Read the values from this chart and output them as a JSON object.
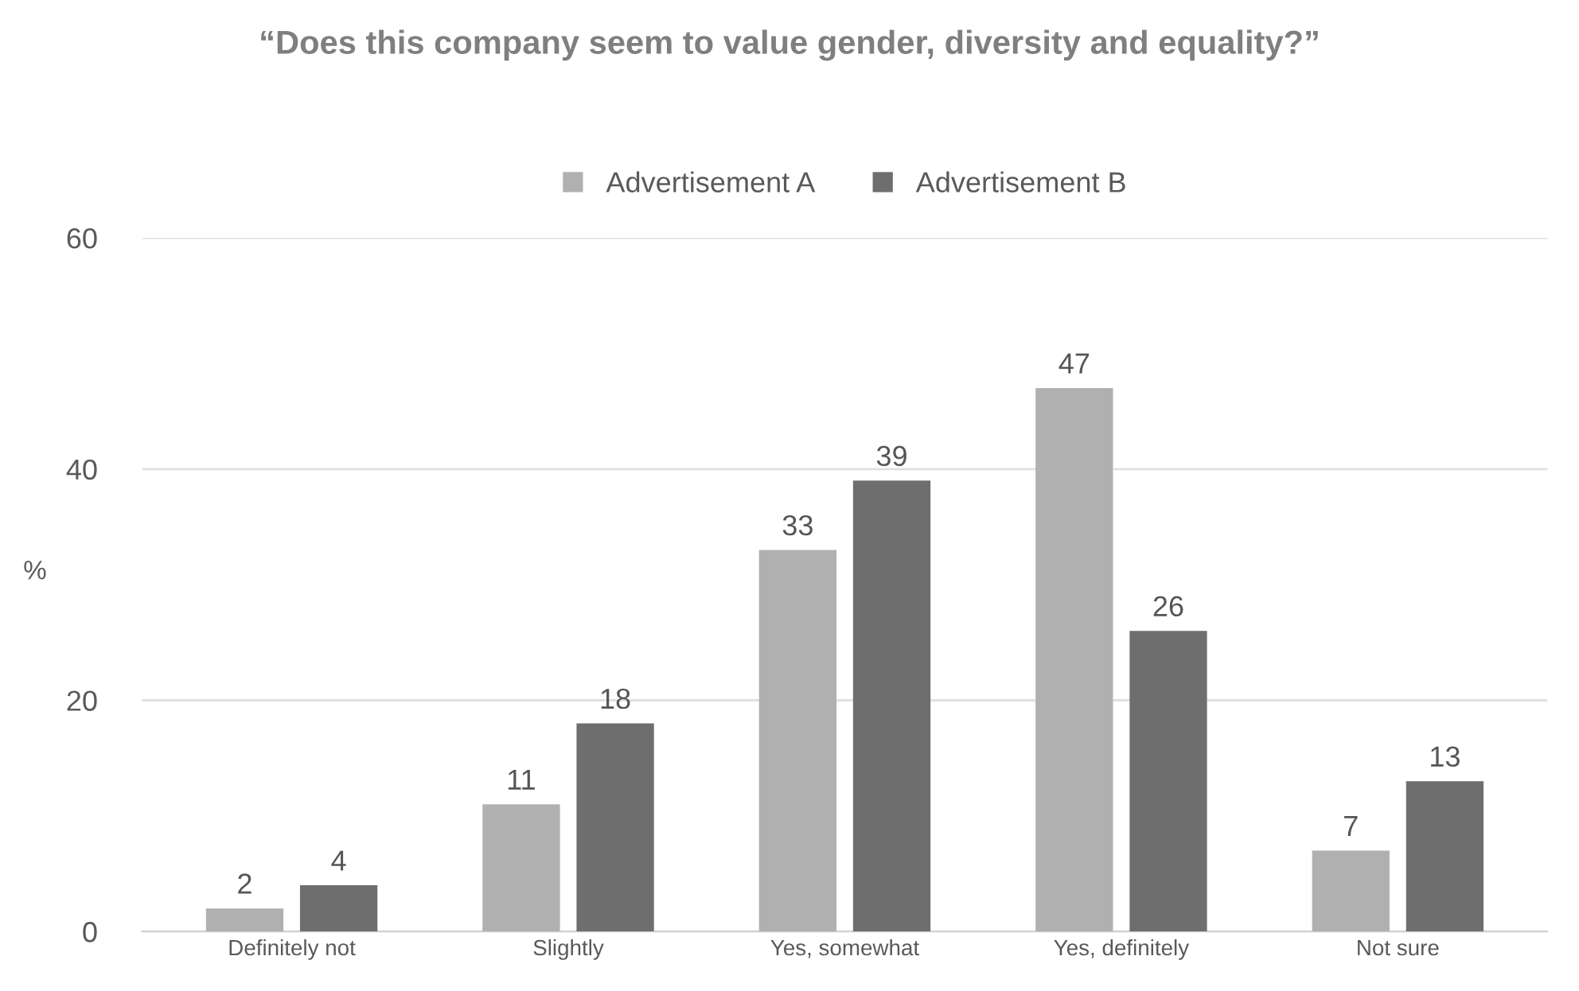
{
  "chart_data": {
    "type": "bar",
    "title": "“Does this company seem to value gender, diversity and equality?”",
    "ylabel": "%",
    "categories": [
      "Definitely not",
      "Slightly",
      "Yes, somewhat",
      "Yes, definitely",
      "Not sure"
    ],
    "series": [
      {
        "name": "Advertisement A",
        "color": "#b0b0b0",
        "values": [
          2,
          11,
          33,
          47,
          7
        ]
      },
      {
        "name": "Advertisement B",
        "color": "#6e6e6e",
        "values": [
          4,
          18,
          39,
          26,
          13
        ]
      }
    ],
    "ylim": [
      0,
      60
    ],
    "yticks": [
      0,
      20,
      40,
      60
    ],
    "grid": "y",
    "legend": "top",
    "data_labels": true
  }
}
